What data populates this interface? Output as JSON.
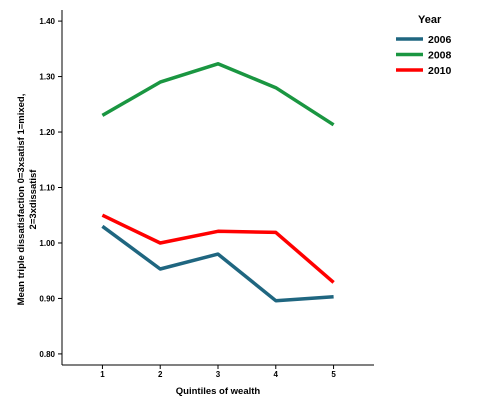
{
  "chart_data": {
    "type": "line",
    "title": "",
    "xlabel": "Quintiles of wealth",
    "ylabel_line1": "Mean triple dissatisfaction 0=3xsatisf 1=mixed,",
    "ylabel_line2": "2=3xdissatisf",
    "x": [
      1,
      2,
      3,
      4,
      5
    ],
    "x_tick_labels": [
      "1",
      "2",
      "3",
      "4",
      "5"
    ],
    "xlim": [
      0.3,
      5.7
    ],
    "ylim": [
      0.78,
      1.42
    ],
    "y_ticks": [
      0.8,
      0.9,
      1.0,
      1.1,
      1.2,
      1.3,
      1.4
    ],
    "y_tick_labels": [
      "0.80",
      "0.90",
      "1.00",
      "1.10",
      "1.20",
      "1.30",
      "1.40"
    ],
    "grid": false,
    "legend": {
      "title": "Year",
      "placement": "top-right, outside plot"
    },
    "series": [
      {
        "name": "2006",
        "color": "#1f6680",
        "values": [
          1.03,
          0.953,
          0.98,
          0.896,
          0.903
        ]
      },
      {
        "name": "2008",
        "color": "#1a9641",
        "values": [
          1.23,
          1.29,
          1.323,
          1.28,
          1.213
        ]
      },
      {
        "name": "2010",
        "color": "#ff0000",
        "values": [
          1.05,
          1.0,
          1.021,
          1.019,
          0.929
        ]
      }
    ]
  }
}
